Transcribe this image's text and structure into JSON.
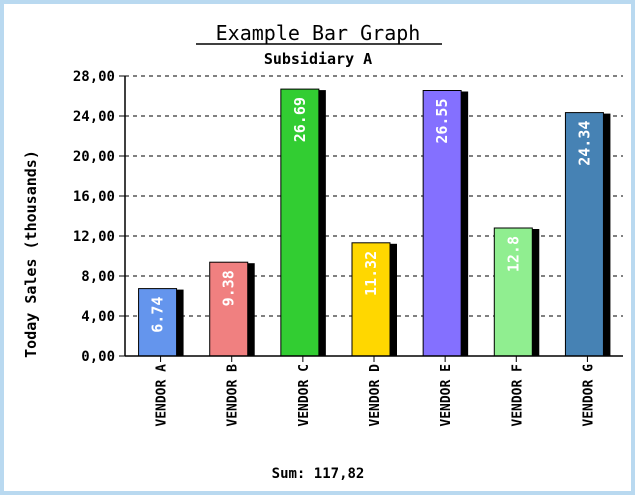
{
  "chart_data": {
    "type": "bar",
    "title": "Example Bar Graph",
    "subtitle": "Subsidiary A",
    "ylabel": "Today Sales (thousands)",
    "xlabel": "",
    "ylim": [
      0,
      28
    ],
    "yticks": [
      "0,00",
      "4,00",
      "8,00",
      "12,00",
      "16,00",
      "20,00",
      "24,00",
      "28,00"
    ],
    "ytick_values": [
      0,
      4,
      8,
      12,
      16,
      20,
      24,
      28
    ],
    "categories": [
      "VENDOR A",
      "VENDOR B",
      "VENDOR C",
      "VENDOR D",
      "VENDOR E",
      "VENDOR F",
      "VENDOR G"
    ],
    "values": [
      6.74,
      9.38,
      26.69,
      11.32,
      26.55,
      12.8,
      24.34
    ],
    "value_labels": [
      "6.74",
      "9.38",
      "26.69",
      "11.32",
      "26.55",
      "12.8",
      "24.34"
    ],
    "bar_colors": [
      "#6495ed",
      "#f08080",
      "#32cd32",
      "#ffd700",
      "#8470ff",
      "#90ee90",
      "#4682b4"
    ],
    "label_colors": [
      "#ffffff",
      "#ffffff",
      "#ffffff",
      "#ffffff",
      "#ffffff",
      "#ffffff",
      "#ffffff"
    ],
    "grid": "horizontal dashed",
    "footer": "Sum: 117,82"
  }
}
